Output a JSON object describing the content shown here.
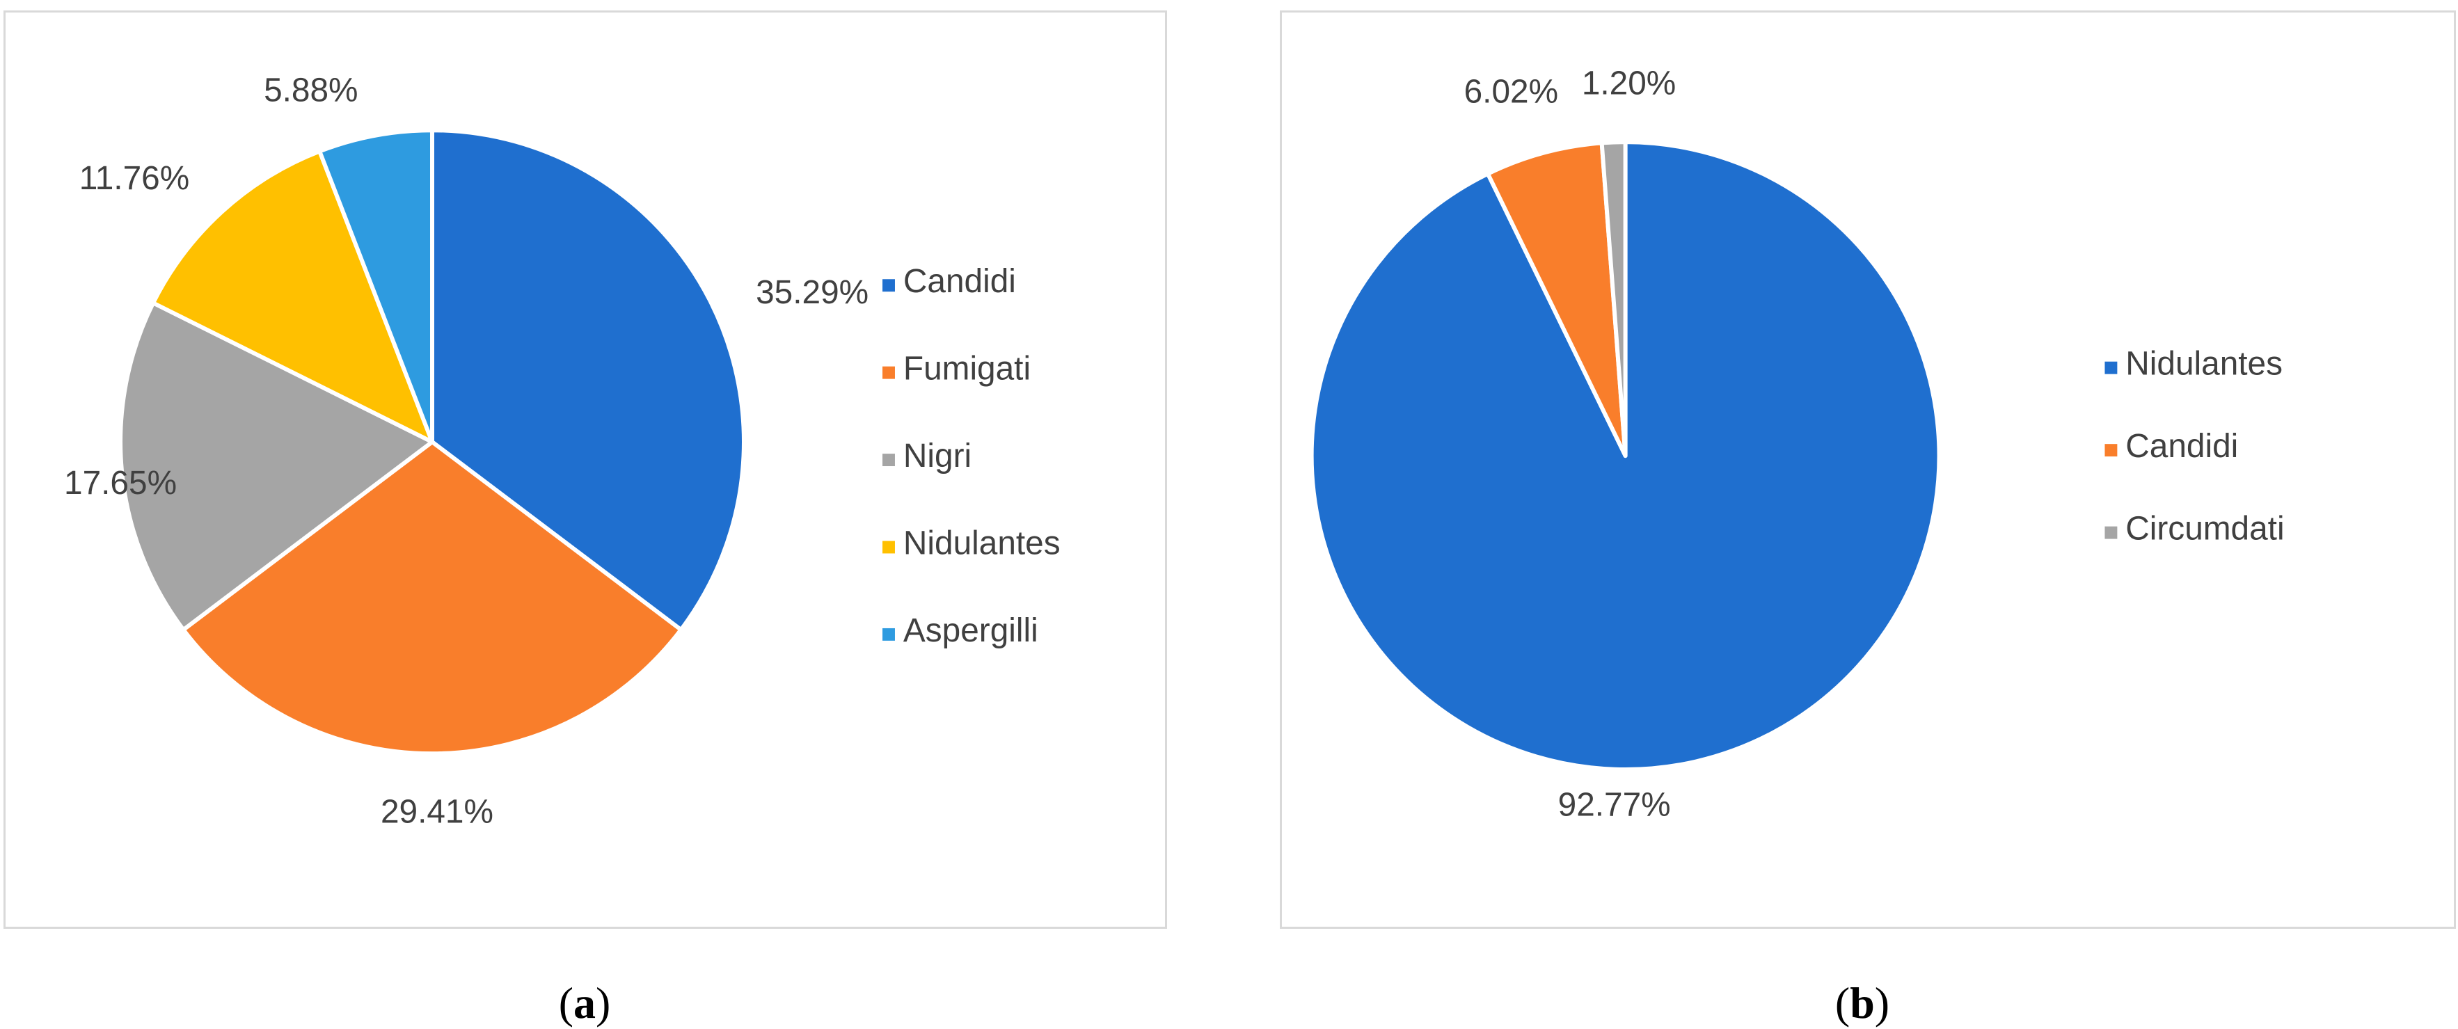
{
  "chart_data": [
    {
      "type": "pie",
      "title": "",
      "legend_position": "right",
      "slices": [
        {
          "label": "Candidi",
          "value": 35.29,
          "display": "35.29%",
          "color": "#1f6fcf"
        },
        {
          "label": "Fumigati",
          "value": 29.41,
          "display": "29.41%",
          "color": "#f97e2b"
        },
        {
          "label": "Nigri",
          "value": 17.65,
          "display": "17.65%",
          "color": "#a5a5a5"
        },
        {
          "label": "Nidulantes",
          "value": 11.76,
          "display": "11.76%",
          "color": "#ffc000"
        },
        {
          "label": "Aspergilli",
          "value": 5.88,
          "display": "5.88%",
          "color": "#2e9be0"
        }
      ]
    },
    {
      "type": "pie",
      "title": "",
      "legend_position": "right",
      "slices": [
        {
          "label": "Nidulantes",
          "value": 92.77,
          "display": "92.77%",
          "color": "#1f6fcf"
        },
        {
          "label": "Candidi",
          "value": 6.02,
          "display": "6.02%",
          "color": "#f97e2b"
        },
        {
          "label": "Circumdati",
          "value": 1.2,
          "display": "1.20%",
          "color": "#a5a5a5"
        }
      ]
    }
  ],
  "captions": [
    {
      "open": "(",
      "letter": "a",
      "close": ")"
    },
    {
      "open": "(",
      "letter": "b",
      "close": ")"
    }
  ]
}
